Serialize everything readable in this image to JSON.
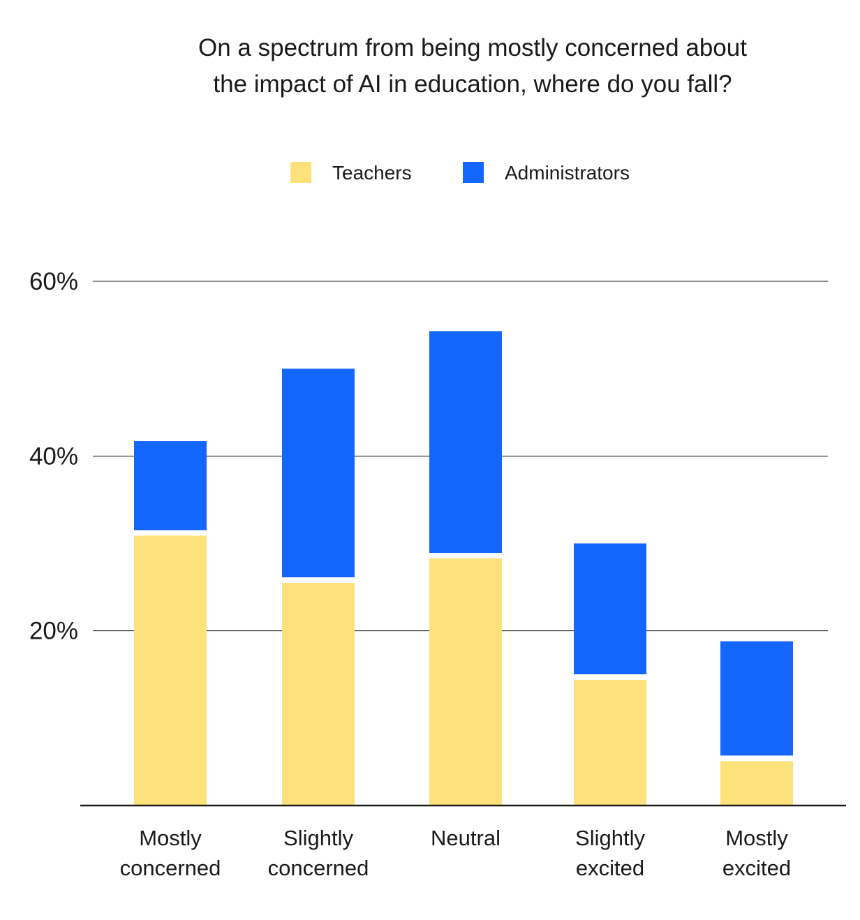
{
  "chart_data": {
    "type": "bar",
    "stacked": true,
    "title": [
      "On a spectrum from being mostly concerned about",
      "the impact of AI in education, where do you fall?"
    ],
    "categories": [
      [
        "Mostly",
        "concerned"
      ],
      [
        "Slightly",
        "concerned"
      ],
      [
        "Neutral"
      ],
      [
        "Slightly",
        "excited"
      ],
      [
        "Mostly",
        "excited"
      ]
    ],
    "series": [
      {
        "name": "Teachers",
        "color": "#FDE17A",
        "values": [
          31.2,
          25.8,
          28.6,
          14.7,
          5.4
        ]
      },
      {
        "name": "Administrators",
        "color": "#1565FF",
        "values": [
          10.5,
          24.2,
          25.7,
          15.3,
          13.4
        ]
      }
    ],
    "yticks": [
      20,
      40,
      60
    ],
    "ytick_labels": [
      "20%",
      "40%",
      "60%"
    ],
    "ylim": [
      0,
      60
    ],
    "legend_position": "top-center",
    "grid": true
  }
}
